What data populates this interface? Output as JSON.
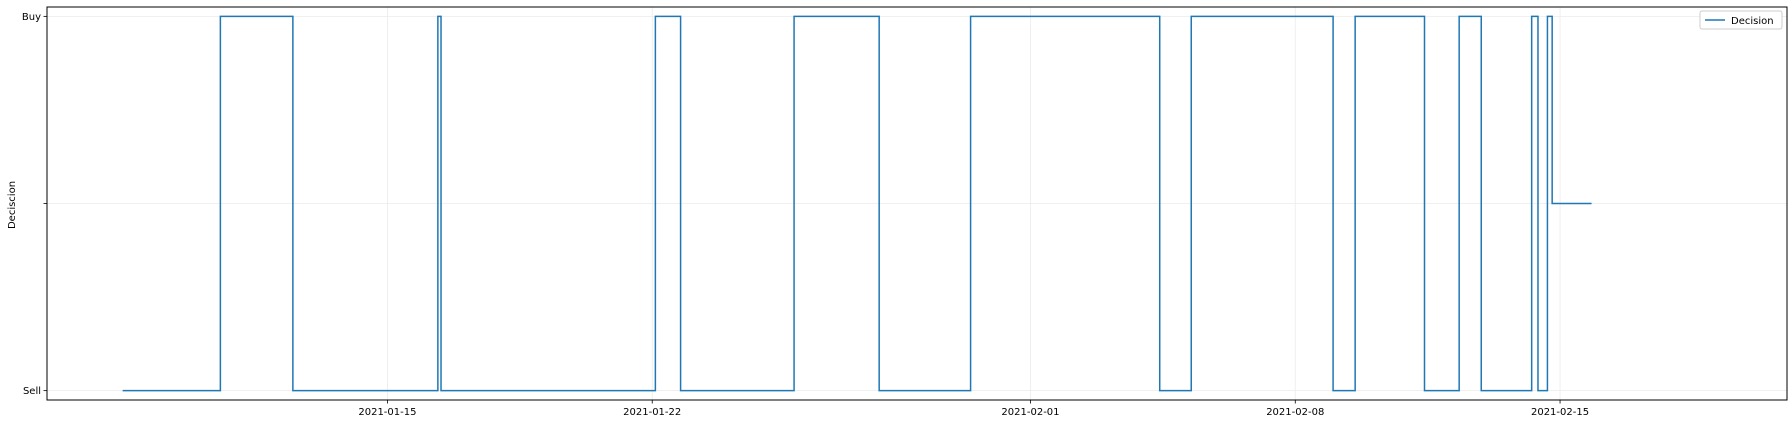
{
  "chart_data": {
    "type": "line",
    "title": "",
    "xlabel": "",
    "ylabel": "Deciscion",
    "x_type": "date",
    "xlim": [
      "2021-01-06",
      "2021-02-21"
    ],
    "x_ticks": [
      "2021-01-15",
      "2021-01-22",
      "2021-02-01",
      "2021-02-08",
      "2021-02-15"
    ],
    "y_categories": [
      "Sell",
      "",
      "Buy"
    ],
    "y_tick_labels": [
      "Sell",
      "",
      "Buy"
    ],
    "ylim": [
      -0.05,
      2.05
    ],
    "grid": true,
    "legend_position": "upper-right",
    "color": "#1f77b4",
    "series": [
      {
        "name": "Decision",
        "steps": [
          [
            "2021-01-08T00:00",
            0
          ],
          [
            "2021-01-10T14:00",
            2
          ],
          [
            "2021-01-12T12:00",
            0
          ],
          [
            "2021-01-16T08:00",
            2
          ],
          [
            "2021-01-16T10:00",
            0
          ],
          [
            "2021-01-22T02:00",
            2
          ],
          [
            "2021-01-22T18:00",
            0
          ],
          [
            "2021-01-25T18:00",
            2
          ],
          [
            "2021-01-28T00:00",
            0
          ],
          [
            "2021-01-30T10:00",
            2
          ],
          [
            "2021-02-04T10:00",
            0
          ],
          [
            "2021-02-05T06:00",
            2
          ],
          [
            "2021-02-09T00:00",
            0
          ],
          [
            "2021-02-09T14:00",
            2
          ],
          [
            "2021-02-11T10:00",
            0
          ],
          [
            "2021-02-12T08:00",
            2
          ],
          [
            "2021-02-12T22:00",
            0
          ],
          [
            "2021-02-14T06:00",
            2
          ],
          [
            "2021-02-14T10:00",
            0
          ],
          [
            "2021-02-14T16:00",
            2
          ],
          [
            "2021-02-14T19:00",
            1
          ]
        ],
        "end": "2021-02-15T20:00"
      }
    ]
  }
}
